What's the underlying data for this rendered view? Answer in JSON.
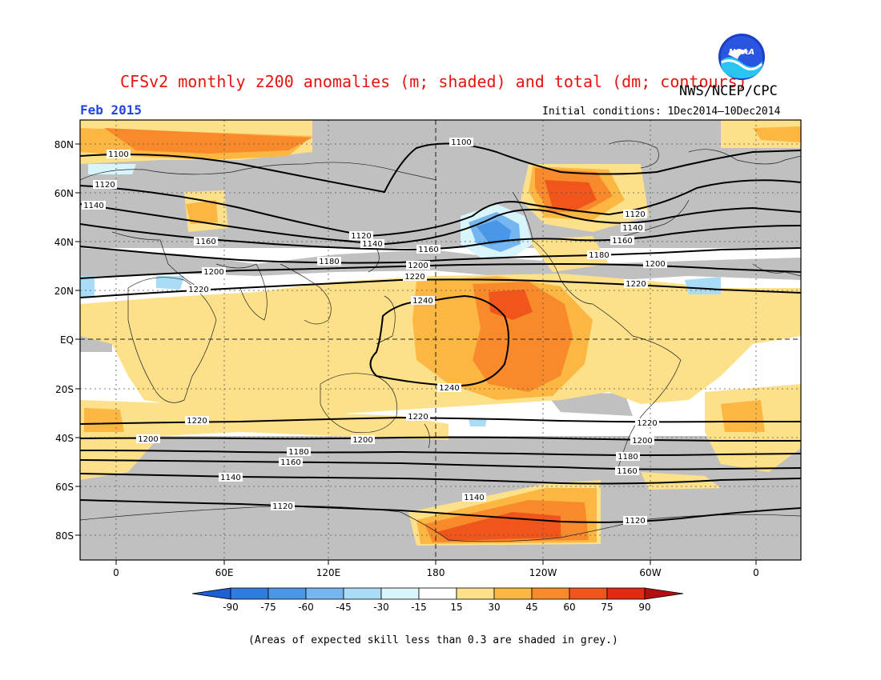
{
  "header": {
    "title": "CFSv2 monthly z200 anomalies (m; shaded) and total (dm; contours)",
    "organization": "NWS/NCEP/CPC",
    "period": "Feb 2015",
    "initial_conditions": "Initial conditions: 1Dec2014—10Dec2014",
    "logo_text": "NOAA"
  },
  "map": {
    "lat_labels": [
      "80N",
      "60N",
      "40N",
      "20N",
      "EQ",
      "20S",
      "40S",
      "60S",
      "80S"
    ],
    "lon_labels": [
      "0",
      "60E",
      "120E",
      "180",
      "120W",
      "60W",
      "0"
    ],
    "contour_labels": {
      "c1100a": "1100",
      "c1100b": "1100",
      "c1120a": "1120",
      "c1120b": "1120",
      "c1120c": "1120",
      "c1140a": "1140",
      "c1140b": "1140",
      "c1140c": "1140",
      "c1160a": "1160",
      "c1160b": "1160",
      "c1160c": "1160",
      "c1180a": "1180",
      "c1180b": "1180",
      "c1200a": "1200",
      "c1200b": "1200",
      "c1200c": "1200",
      "c1220a": "1220",
      "c1220b": "1220",
      "c1220c": "1220",
      "c1240a": "1240",
      "c1240b": "1240",
      "s1220a": "1220",
      "s1220b": "1220",
      "s1220c": "1220",
      "s1200a": "1200",
      "s1200b": "1200",
      "s1200c": "1200",
      "s1180a": "1180",
      "s1180b": "1180",
      "s1160a": "1160",
      "s1160b": "1160",
      "s1140a": "1140",
      "s1140b": "1140",
      "s1120a": "1120",
      "s1120b": "1120"
    }
  },
  "colorbar": {
    "labels": [
      "-90",
      "-75",
      "-60",
      "-45",
      "-30",
      "-15",
      "15",
      "30",
      "45",
      "60",
      "75",
      "90"
    ],
    "colors": [
      "#1c5fd6",
      "#2f7ce0",
      "#4a97e8",
      "#76b6f0",
      "#a9dcf6",
      "#d8f5fb",
      "#ffffff",
      "#fde08a",
      "#fcb743",
      "#f98a2b",
      "#f0551c",
      "#e02a12",
      "#b51010"
    ]
  },
  "footnote": "(Areas of expected skill less than 0.3 are shaded in grey.)"
}
